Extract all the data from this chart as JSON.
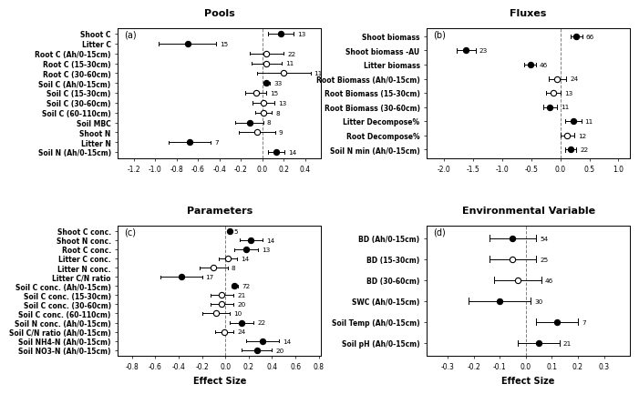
{
  "panels": {
    "a": {
      "title": "Pools",
      "label": "(a)",
      "xlim": [
        -1.35,
        0.55
      ],
      "xticks": [
        -1.2,
        -1.0,
        -0.8,
        -0.6,
        -0.4,
        -0.2,
        0.0,
        0.2,
        0.4
      ],
      "xtick_labels": [
        "-1.2",
        "-1.0",
        "-0.8",
        "-0.6",
        "-0.4",
        "-0.2",
        "0.0",
        "0.2",
        "0.4"
      ],
      "xlabel": "",
      "labels": [
        "Shoot C",
        "Litter C",
        "Root C (Ah/0-15cm)",
        "Root C (15-30cm)",
        "Root C (30-60cm)",
        "Soil C (Ah/0-15cm)",
        "Soil C (15-30cm)",
        "Soil C (30-60cm)",
        "Soil C (60-110cm)",
        "Soil MBC",
        "Shoot N",
        "Litter N",
        "Soil N (Ah/0-15cm)"
      ],
      "means": [
        0.17,
        -0.7,
        0.04,
        0.04,
        0.2,
        0.04,
        -0.06,
        0.01,
        0.01,
        -0.12,
        -0.05,
        -0.68,
        0.13
      ],
      "ci_low": [
        0.05,
        -0.97,
        -0.12,
        -0.1,
        -0.05,
        0.01,
        -0.16,
        -0.09,
        -0.07,
        -0.25,
        -0.22,
        -0.88,
        0.05
      ],
      "ci_high": [
        0.29,
        -0.43,
        0.2,
        0.18,
        0.45,
        0.07,
        0.04,
        0.11,
        0.09,
        0.01,
        0.12,
        -0.48,
        0.21
      ],
      "filled": [
        true,
        true,
        false,
        false,
        false,
        true,
        false,
        false,
        false,
        true,
        false,
        true,
        true
      ],
      "ns": [
        13,
        15,
        22,
        11,
        11,
        33,
        15,
        13,
        8,
        8,
        9,
        7,
        14
      ]
    },
    "b": {
      "title": "Fluxes",
      "label": "(b)",
      "xlim": [
        -2.3,
        1.2
      ],
      "xticks": [
        -2.0,
        -1.5,
        -1.0,
        -0.5,
        0.0,
        0.5,
        1.0
      ],
      "xtick_labels": [
        "-2.0",
        "-1.5",
        "-1.0",
        "-0.5",
        "0.0",
        "0.5",
        "1.0"
      ],
      "xlabel": "",
      "labels": [
        "Shoot biomass",
        "Shoot biomass -AU",
        "Litter biomass",
        "Root Biomass (Ah/0-15cm)",
        "Root Biomass (15-30cm)",
        "Root Biomass (30-60cm)",
        "Litter Decompose%",
        "Root Decompose%",
        "Soil N min (Ah/0-15cm)"
      ],
      "means": [
        0.28,
        -1.62,
        -0.52,
        -0.05,
        -0.12,
        -0.18,
        0.22,
        0.12,
        0.18
      ],
      "ci_low": [
        0.18,
        -1.78,
        -0.62,
        -0.2,
        -0.25,
        -0.3,
        0.08,
        0.0,
        0.08
      ],
      "ci_high": [
        0.38,
        -1.46,
        -0.42,
        0.1,
        0.01,
        -0.06,
        0.36,
        0.24,
        0.28
      ],
      "filled": [
        true,
        true,
        true,
        false,
        false,
        true,
        true,
        false,
        true
      ],
      "ns": [
        66,
        23,
        46,
        24,
        13,
        11,
        11,
        12,
        22
      ]
    },
    "c": {
      "title": "Parameters",
      "label": "(c)",
      "xlim": [
        -0.92,
        0.82
      ],
      "xticks": [
        -0.8,
        -0.6,
        -0.4,
        -0.2,
        0.0,
        0.2,
        0.4,
        0.6,
        0.8
      ],
      "xtick_labels": [
        "-0.8",
        "-0.6",
        "-0.4",
        "-0.2",
        "0.0",
        "0.2",
        "0.4",
        "0.6",
        "0.8"
      ],
      "xlabel": "Effect Size",
      "labels": [
        "Shoot C conc.",
        "Shoot N conc.",
        "Root C conc.",
        "Litter C conc.",
        "Litter N conc.",
        "Litter C/N ratio",
        "Soil C conc. (Ah/0-15cm)",
        "Soil C conc. (15-30cm)",
        "Soil C conc. (30-60cm)",
        "Soil C conc. (60-110cm)",
        "Soil N conc. (Ah/0-15cm)",
        "Soil C/N ratio (Ah/0-15cm)",
        "Soil NH4-N (Ah/0-15cm)",
        "Soil NO3-N (Ah/0-15cm)"
      ],
      "means": [
        0.04,
        0.22,
        0.18,
        0.02,
        -0.1,
        -0.38,
        0.08,
        -0.03,
        -0.03,
        -0.08,
        0.14,
        -0.01,
        0.32,
        0.27
      ],
      "ci_low": [
        0.04,
        0.12,
        0.08,
        -0.06,
        -0.22,
        -0.56,
        0.05,
        -0.13,
        -0.13,
        -0.2,
        0.04,
        -0.09,
        0.18,
        0.14
      ],
      "ci_high": [
        0.04,
        0.32,
        0.28,
        0.1,
        0.02,
        -0.2,
        0.11,
        0.07,
        0.07,
        0.04,
        0.24,
        0.07,
        0.46,
        0.4
      ],
      "filled": [
        true,
        true,
        true,
        false,
        false,
        true,
        true,
        false,
        false,
        false,
        true,
        false,
        true,
        true
      ],
      "ns": [
        5,
        14,
        13,
        14,
        8,
        17,
        72,
        21,
        20,
        10,
        22,
        24,
        14,
        20
      ]
    },
    "d": {
      "title": "Environmental Variable",
      "label": "(d)",
      "xlim": [
        -0.38,
        0.4
      ],
      "xticks": [
        -0.3,
        -0.2,
        -0.1,
        0.0,
        0.1,
        0.2,
        0.3
      ],
      "xtick_labels": [
        "-0.3",
        "-0.2",
        "-0.1",
        "0.0",
        "0.1",
        "0.2",
        "0.3"
      ],
      "xlabel": "Effect Size",
      "labels": [
        "BD (Ah/0-15cm)",
        "BD (15-30cm)",
        "BD (30-60cm)",
        "SWC (Ah/0-15cm)",
        "Soil Temp (Ah/0-15cm)",
        "Soil pH (Ah/0-15cm)"
      ],
      "means": [
        -0.05,
        -0.05,
        -0.03,
        -0.1,
        0.12,
        0.05
      ],
      "ci_low": [
        -0.14,
        -0.14,
        -0.12,
        -0.22,
        0.04,
        -0.03
      ],
      "ci_high": [
        0.04,
        0.04,
        0.06,
        0.02,
        0.2,
        0.13
      ],
      "filled": [
        true,
        false,
        false,
        true,
        true,
        true
      ],
      "ns": [
        54,
        25,
        46,
        30,
        7,
        21
      ]
    }
  }
}
